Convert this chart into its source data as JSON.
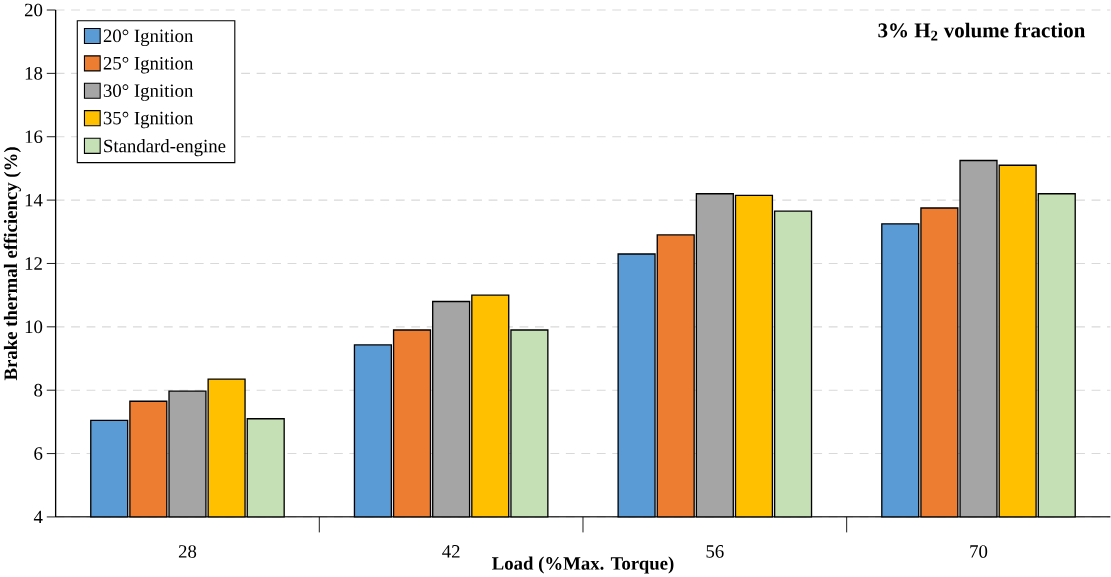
{
  "chart_data": {
    "type": "bar",
    "title": "3% H$_{2}$ volume fraction",
    "xlabel": "Load (%Max. Torque)",
    "ylabel": "Brake thermal efficiency (%)",
    "categories": [
      "28",
      "42",
      "56",
      "70"
    ],
    "series": [
      {
        "name": "20° Ignition",
        "color": "#5b9bd5",
        "values": [
          7.05,
          9.43,
          12.3,
          13.25
        ]
      },
      {
        "name": "25° Ignition",
        "color": "#ed7d31",
        "values": [
          7.65,
          9.9,
          12.9,
          13.75
        ]
      },
      {
        "name": "30° Ignition",
        "color": "#a5a5a5",
        "values": [
          7.97,
          10.8,
          14.2,
          15.25
        ]
      },
      {
        "name": "35° Ignition",
        "color": "#ffc000",
        "values": [
          8.35,
          11.0,
          14.15,
          15.1
        ]
      },
      {
        "name": "Standard-engine",
        "color": "#c5e0b4",
        "values": [
          7.1,
          9.9,
          13.65,
          14.2
        ]
      }
    ],
    "ylim": [
      4,
      20
    ],
    "yticks": [
      4,
      6,
      8,
      10,
      12,
      14,
      16,
      18,
      20
    ],
    "grid": "y",
    "legend": "top left"
  }
}
